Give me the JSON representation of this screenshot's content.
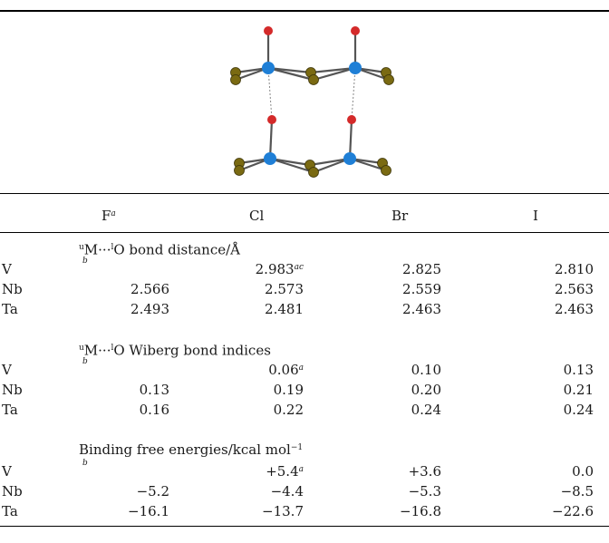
{
  "columns": {
    "col1": "F",
    "col1_sup": "a",
    "col2": "Cl",
    "col3": "Br",
    "col4": "I"
  },
  "sections": [
    {
      "prefix": "M···",
      "sup_u": "u",
      "sup_l": "l",
      "title_rest": "O bond distance/Å",
      "note": "b",
      "rows": [
        {
          "label": "V",
          "v1": "",
          "v2": "2.983",
          "v2_sup": "ac",
          "v3": "2.825",
          "v4": "2.810"
        },
        {
          "label": "Nb",
          "v1": "2.566",
          "v2": "2.573",
          "v2_sup": "",
          "v3": "2.559",
          "v4": "2.563"
        },
        {
          "label": "Ta",
          "v1": "2.493",
          "v2": "2.481",
          "v2_sup": "",
          "v3": "2.463",
          "v4": "2.463"
        }
      ]
    },
    {
      "prefix": "M···",
      "sup_u": "u",
      "sup_l": "l",
      "title_rest": "O Wiberg bond indices",
      "note": "b",
      "rows": [
        {
          "label": "V",
          "v1": "",
          "v2": "0.06",
          "v2_sup": "a",
          "v3": "0.10",
          "v4": "0.13"
        },
        {
          "label": "Nb",
          "v1": "0.13",
          "v2": "0.19",
          "v2_sup": "",
          "v3": "0.20",
          "v4": "0.21"
        },
        {
          "label": "Ta",
          "v1": "0.16",
          "v2": "0.22",
          "v2_sup": "",
          "v3": "0.24",
          "v4": "0.24"
        }
      ]
    },
    {
      "prefix": "",
      "sup_u": "",
      "sup_l": "",
      "title_rest": "Binding free energies/kcal mol",
      "title_sup": "−1",
      "note": "b",
      "rows": [
        {
          "label": "V",
          "v1": "",
          "v2": "+5.4",
          "v2_sup": "a",
          "v3": "+3.6",
          "v4": "0.0"
        },
        {
          "label": "Nb",
          "v1": "−5.2",
          "v2": "−4.4",
          "v2_sup": "",
          "v3": "−5.3",
          "v4": "−8.5"
        },
        {
          "label": "Ta",
          "v1": "−16.1",
          "v2": "−13.7",
          "v2_sup": "",
          "v3": "−16.8",
          "v4": "−22.6"
        }
      ]
    }
  ],
  "colors": {
    "oxygen": "#d42a2a",
    "metal": "#1f7fd6",
    "halide": "#7a6a12",
    "bond": "#555555"
  }
}
